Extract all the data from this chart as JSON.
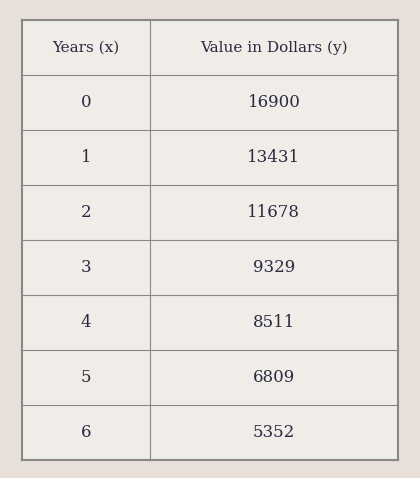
{
  "col1_header": "Years (x)",
  "col2_header": "Value in Dollars (y)",
  "years": [
    0,
    1,
    2,
    3,
    4,
    5,
    6
  ],
  "values": [
    16900,
    13431,
    11678,
    9329,
    8511,
    6809,
    5352
  ],
  "background_color": "#e8e0d8",
  "table_bg_color": "#f0ece8",
  "header_bg_color": "#f0ece8",
  "border_color": "#888888",
  "text_color": "#2a2a40",
  "header_fontsize": 11,
  "cell_fontsize": 12,
  "outer_border_color": "#888888"
}
